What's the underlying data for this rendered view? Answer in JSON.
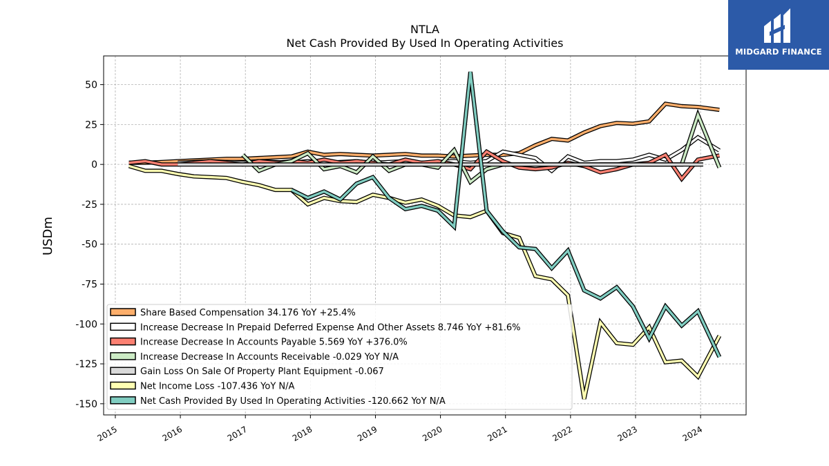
{
  "brand": {
    "name": "MIDGARD FINANCE",
    "bg_color": "#2c5aa8"
  },
  "chart_data": {
    "type": "line",
    "title": "NTLA",
    "subtitle": "Net Cash Provided By Used In Operating Activities",
    "ylabel": "USDm",
    "xlabel": "",
    "xlim": [
      2014.82,
      2024.7
    ],
    "ylim": [
      -157,
      68
    ],
    "yticks": [
      50,
      25,
      0,
      -25,
      -50,
      -75,
      -100,
      -125,
      -150
    ],
    "xticks": [
      "2015",
      "2016",
      "2017",
      "2018",
      "2019",
      "2020",
      "2021",
      "2022",
      "2023",
      "2024"
    ],
    "grid": true,
    "legend_position": "lower-left",
    "series": [
      {
        "name": "Share Based Compensation  34.176 YoY +25.4%",
        "color": "#fdae6b",
        "x": [
          2015.21,
          2015.46,
          2015.71,
          2015.96,
          2016.21,
          2016.46,
          2016.71,
          2016.96,
          2017.21,
          2017.46,
          2017.71,
          2017.96,
          2018.21,
          2018.46,
          2018.71,
          2018.96,
          2019.21,
          2019.46,
          2019.71,
          2019.96,
          2020.21,
          2020.46,
          2020.71,
          2020.96,
          2021.21,
          2021.46,
          2021.71,
          2021.96,
          2022.21,
          2022.46,
          2022.71,
          2022.96,
          2023.21,
          2023.46,
          2023.71,
          2023.96,
          2024.29
        ],
        "values": [
          1,
          1,
          1.5,
          2,
          2.5,
          3,
          3.5,
          3.5,
          4,
          4.5,
          5,
          8,
          6,
          6.5,
          6,
          5.5,
          6,
          6.5,
          5.5,
          5.5,
          5,
          5.5,
          6,
          6,
          7,
          12,
          16,
          15,
          20,
          24,
          26,
          25.5,
          27,
          38,
          36.5,
          36,
          34.2
        ]
      },
      {
        "name": "Increase Decrease In Prepaid Deferred Expense And Other Assets  8.746 YoY +81.6%",
        "color": "#ffffff",
        "x": [
          2015.96,
          2016.21,
          2016.46,
          2016.71,
          2016.96,
          2017.21,
          2017.46,
          2017.71,
          2017.96,
          2018.21,
          2018.46,
          2018.71,
          2018.96,
          2019.21,
          2019.46,
          2019.71,
          2019.96,
          2020.21,
          2020.46,
          2020.71,
          2020.96,
          2021.21,
          2021.46,
          2021.71,
          2021.96,
          2022.21,
          2022.46,
          2022.71,
          2022.96,
          2023.21,
          2023.46,
          2023.71,
          2023.96,
          2024.29
        ],
        "values": [
          1,
          1.5,
          2,
          1.5,
          1,
          2,
          1.5,
          1,
          2,
          1,
          1.5,
          2,
          1,
          1.5,
          2,
          1,
          1.5,
          2,
          1,
          2,
          8,
          6,
          4,
          -4,
          5,
          1,
          2,
          2,
          3,
          6,
          3,
          9,
          17,
          8.7
        ]
      },
      {
        "name": "Increase Decrease In Accounts Payable  5.569 YoY +376.0%",
        "color": "#fb8072",
        "x": [
          2015.21,
          2015.46,
          2015.71,
          2015.96,
          2016.21,
          2016.46,
          2016.71,
          2016.96,
          2017.21,
          2017.46,
          2017.71,
          2017.96,
          2018.21,
          2018.46,
          2018.71,
          2018.96,
          2019.21,
          2019.46,
          2019.71,
          2019.96,
          2020.21,
          2020.46,
          2020.71,
          2020.96,
          2021.21,
          2021.46,
          2021.71,
          2021.96,
          2022.21,
          2022.46,
          2022.71,
          2022.96,
          2023.21,
          2023.46,
          2023.71,
          2023.96,
          2024.29
        ],
        "values": [
          1,
          2,
          0,
          0,
          1,
          2,
          1,
          0,
          2,
          1,
          2,
          1,
          3,
          1,
          2,
          1,
          0,
          3,
          1,
          2,
          0,
          -3,
          8,
          2,
          -2,
          -3,
          -2,
          1,
          -1,
          -5,
          -3,
          0,
          1,
          6,
          -9,
          3,
          5.6
        ]
      },
      {
        "name": "Increase Decrease In Accounts Receivable  -0.029 YoY N/A",
        "color": "#ccebc5",
        "x": [
          2016.96,
          2017.21,
          2017.46,
          2017.71,
          2017.96,
          2018.21,
          2018.46,
          2018.71,
          2018.96,
          2019.21,
          2019.46,
          2019.71,
          2019.96,
          2020.21,
          2020.46,
          2020.71,
          2020.96,
          2021.21,
          2021.46,
          2021.71,
          2021.96,
          2022.21,
          2022.46,
          2022.71,
          2022.96,
          2023.21,
          2023.46,
          2023.71,
          2023.96,
          2024.29
        ],
        "values": [
          6,
          -4,
          0,
          2,
          7,
          -3,
          -1,
          -5,
          5,
          -4,
          0,
          0,
          -2,
          9,
          -11,
          -3,
          0,
          0,
          0,
          0,
          0,
          0,
          0,
          0,
          0,
          0,
          0,
          0,
          31,
          -2
        ]
      },
      {
        "name": "Gain Loss On Sale Of Property Plant Equipment  -0.067",
        "color": "#d9d9d9",
        "x": [
          2015.96,
          2024.04
        ],
        "values": [
          -0.067,
          -0.067
        ]
      },
      {
        "name": "Net Income Loss  -107.436 YoY N/A",
        "color": "#ffffb3",
        "x": [
          2015.21,
          2015.46,
          2015.71,
          2015.96,
          2016.21,
          2016.46,
          2016.71,
          2016.96,
          2017.21,
          2017.46,
          2017.71,
          2017.96,
          2018.21,
          2018.46,
          2018.71,
          2018.96,
          2019.21,
          2019.46,
          2019.71,
          2019.96,
          2020.21,
          2020.46,
          2020.71,
          2020.96,
          2021.21,
          2021.46,
          2021.71,
          2021.96,
          2022.21,
          2022.46,
          2022.71,
          2022.96,
          2023.21,
          2023.46,
          2023.71,
          2023.96,
          2024.29
        ],
        "values": [
          -1,
          -4,
          -4,
          -6,
          -7.5,
          -8,
          -8.5,
          -11,
          -13,
          -16,
          -16,
          -25,
          -21,
          -23,
          -23.5,
          -19,
          -21,
          -24,
          -22,
          -26,
          -32,
          -33,
          -29,
          -43,
          -46,
          -70,
          -72,
          -82,
          -147,
          -99,
          -112,
          -113,
          -102,
          -124,
          -123,
          -133,
          -107.4
        ]
      },
      {
        "name": "Net Cash Provided By Used In Operating Activities  -120.662 YoY N/A",
        "color": "#80cdc1",
        "x": [
          2017.71,
          2017.96,
          2018.21,
          2018.46,
          2018.71,
          2018.96,
          2019.21,
          2019.46,
          2019.71,
          2019.96,
          2020.21,
          2020.46,
          2020.71,
          2020.96,
          2021.21,
          2021.46,
          2021.71,
          2021.96,
          2022.21,
          2022.46,
          2022.71,
          2022.96,
          2023.21,
          2023.46,
          2023.71,
          2023.96,
          2024.29
        ],
        "values": [
          -16,
          -21,
          -17,
          -22,
          -12,
          -8,
          -21,
          -28,
          -26,
          -29,
          -39,
          58,
          -29,
          -42,
          -52,
          -53,
          -65,
          -54,
          -79,
          -84,
          -77,
          -89,
          -109,
          -89,
          -101,
          -92,
          -120.7
        ]
      }
    ]
  }
}
